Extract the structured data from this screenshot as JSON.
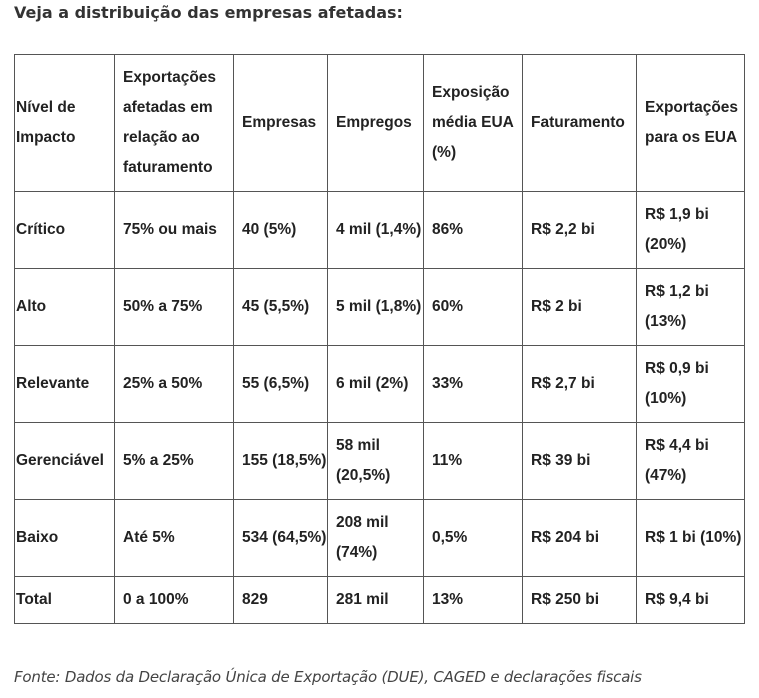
{
  "heading": "Veja a distribuição das empresas afetadas:",
  "table": {
    "headers": [
      "Nível de Impacto",
      "Exportações afetadas em relação ao faturamento",
      "Empresas",
      "Empregos",
      "Exposição média EUA (%)",
      "Faturamento",
      "Exportações para os EUA"
    ],
    "rows": [
      [
        "Crítico",
        "75% ou mais",
        "40 (5%)",
        "4 mil (1,4%)",
        "86%",
        "R$ 2,2 bi",
        "R$ 1,9 bi (20%)"
      ],
      [
        "Alto",
        "50% a 75%",
        "45 (5,5%)",
        "5 mil (1,8%)",
        "60%",
        "R$ 2 bi",
        "R$ 1,2 bi (13%)"
      ],
      [
        "Relevante",
        "25% a 50%",
        "55 (6,5%)",
        "6 mil (2%)",
        "33%",
        "R$ 2,7 bi",
        "R$ 0,9 bi (10%)"
      ],
      [
        "Gerenciável",
        "5% a 25%",
        "155 (18,5%)",
        "58 mil (20,5%)",
        "11%",
        "R$ 39 bi",
        "R$ 4,4 bi (47%)"
      ],
      [
        "Baixo",
        "Até 5%",
        "534 (64,5%)",
        "208 mil (74%)",
        "0,5%",
        "R$ 204 bi",
        "R$ 1 bi (10%)"
      ],
      [
        "Total",
        "0 a 100%",
        "829",
        "281 mil",
        "13%",
        "R$ 250 bi",
        "R$ 9,4 bi"
      ]
    ]
  },
  "source": "Fonte: Dados da Declaração Única de Exportação (DUE), CAGED e declarações fiscais"
}
